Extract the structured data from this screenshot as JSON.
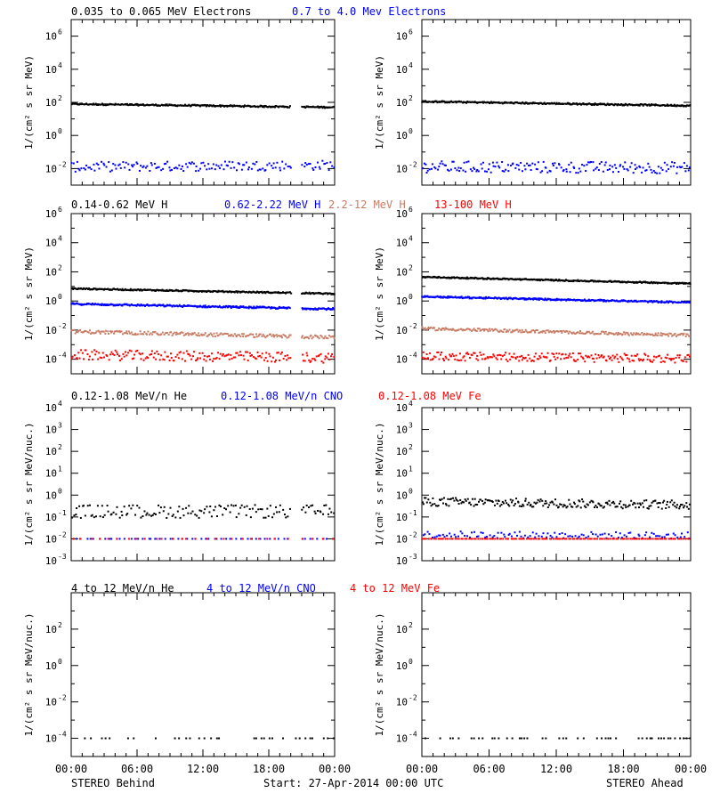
{
  "footer": {
    "left": "STEREO Behind",
    "center": "Start: 27-Apr-2014 00:00 UTC",
    "right": "STEREO Ahead"
  },
  "x_ticks": [
    "00:00",
    "06:00",
    "12:00",
    "18:00",
    "00:00"
  ],
  "colors": {
    "black": "#000000",
    "blue": "#0000ff",
    "tan": "#c87c64",
    "red": "#ff0000"
  },
  "chart_data": [
    {
      "type": "scatter",
      "row": "electrons",
      "labels": [
        {
          "text": "0.035 to 0.065 MeV Electrons",
          "color": "#000000"
        },
        {
          "text": "0.7 to 4.0 Mev Electrons",
          "color": "#0000ff"
        }
      ],
      "ylabel": "1/(cm² s sr MeV)",
      "yscale": "log",
      "ylim_exp": [
        -3,
        7
      ],
      "yticks_exp": [
        -2,
        0,
        2,
        4,
        6
      ],
      "panels": [
        {
          "side": "behind",
          "gap": [
            0.835,
            0.875
          ],
          "series": [
            {
              "color": "#000000",
              "start_exp": 1.9,
              "end_exp": 1.7,
              "scatter": 0.05,
              "density": 240
            },
            {
              "color": "#0000ff",
              "start_exp": -1.9,
              "end_exp": -1.8,
              "scatter": 0.3,
              "density": 160
            }
          ]
        },
        {
          "side": "ahead",
          "gap": null,
          "series": [
            {
              "color": "#000000",
              "start_exp": 2.05,
              "end_exp": 1.8,
              "scatter": 0.05,
              "density": 260
            },
            {
              "color": "#0000ff",
              "start_exp": -1.9,
              "end_exp": -1.95,
              "scatter": 0.35,
              "density": 180
            }
          ]
        }
      ]
    },
    {
      "type": "scatter",
      "row": "protons",
      "labels": [
        {
          "text": "0.14-0.62 MeV H",
          "color": "#000000"
        },
        {
          "text": "0.62-2.22 MeV H",
          "color": "#0000ff"
        },
        {
          "text": "2.2-12 MeV H",
          "color": "#c87c64"
        },
        {
          "text": "13-100 MeV H",
          "color": "#ff0000"
        }
      ],
      "ylabel": "1/(cm² s sr MeV)",
      "yscale": "log",
      "ylim_exp": [
        -5,
        6
      ],
      "yticks_exp": [
        -4,
        -2,
        0,
        2,
        4,
        6
      ],
      "panels": [
        {
          "side": "behind",
          "gap": [
            0.835,
            0.875
          ],
          "series": [
            {
              "color": "#000000",
              "start_exp": 0.85,
              "end_exp": 0.5,
              "scatter": 0.05,
              "density": 260
            },
            {
              "color": "#0000ff",
              "start_exp": -0.2,
              "end_exp": -0.55,
              "scatter": 0.07,
              "density": 240
            },
            {
              "color": "#c87c64",
              "start_exp": -2.1,
              "end_exp": -2.5,
              "scatter": 0.12,
              "density": 220
            },
            {
              "color": "#ff0000",
              "start_exp": -3.7,
              "end_exp": -3.9,
              "scatter": 0.35,
              "density": 200
            }
          ]
        },
        {
          "side": "ahead",
          "gap": null,
          "series": [
            {
              "color": "#000000",
              "start_exp": 1.65,
              "end_exp": 1.2,
              "scatter": 0.05,
              "density": 280
            },
            {
              "color": "#0000ff",
              "start_exp": 0.3,
              "end_exp": -0.1,
              "scatter": 0.06,
              "density": 260
            },
            {
              "color": "#c87c64",
              "start_exp": -1.9,
              "end_exp": -2.35,
              "scatter": 0.1,
              "density": 240
            },
            {
              "color": "#ff0000",
              "start_exp": -3.8,
              "end_exp": -3.95,
              "scatter": 0.3,
              "density": 220
            }
          ]
        }
      ]
    },
    {
      "type": "scatter",
      "row": "heavy-low",
      "labels": [
        {
          "text": "0.12-1.08 MeV/n He",
          "color": "#000000"
        },
        {
          "text": "0.12-1.08 MeV/n CNO",
          "color": "#0000ff"
        },
        {
          "text": "0.12-1.08 MeV Fe",
          "color": "#ff0000"
        }
      ],
      "ylabel": "1/(cm² s sr MeV/nuc.)",
      "yscale": "log",
      "ylim_exp": [
        -3,
        4
      ],
      "yticks_exp": [
        -3,
        -2,
        -1,
        0,
        1,
        2,
        3,
        4
      ],
      "panels": [
        {
          "side": "behind",
          "gap": [
            0.835,
            0.875
          ],
          "series": [
            {
              "color": "#000000",
              "start_exp": -0.75,
              "end_exp": -0.75,
              "scatter": 0.3,
              "density": 150
            },
            {
              "color": "#0000ff",
              "start_exp": -2.0,
              "end_exp": -2.0,
              "scatter": 0.0,
              "density": 60
            },
            {
              "color": "#ff0000",
              "start_exp": -2.0,
              "end_exp": -2.0,
              "scatter": 0.0,
              "density": 30
            }
          ]
        },
        {
          "side": "ahead",
          "gap": null,
          "series": [
            {
              "color": "#000000",
              "start_exp": -0.3,
              "end_exp": -0.45,
              "scatter": 0.2,
              "density": 220
            },
            {
              "color": "#0000ff",
              "start_exp": -1.8,
              "end_exp": -1.85,
              "scatter": 0.15,
              "density": 120
            },
            {
              "color": "#ff0000",
              "start_exp": -2.0,
              "end_exp": -2.0,
              "scatter": 0.0,
              "density": 140
            }
          ]
        }
      ]
    },
    {
      "type": "scatter",
      "row": "heavy-high",
      "labels": [
        {
          "text": "4 to 12 MeV/n He",
          "color": "#000000"
        },
        {
          "text": "4 to 12 MeV/n CNO",
          "color": "#0000ff"
        },
        {
          "text": "4 to 12 MeV Fe",
          "color": "#ff0000"
        }
      ],
      "ylabel": "1/(cm² s sr MeV/nuc.)",
      "yscale": "log",
      "ylim_exp": [
        -5,
        4
      ],
      "yticks_exp": [
        -4,
        -2,
        0,
        2
      ],
      "panels": [
        {
          "side": "behind",
          "gap": null,
          "series": [
            {
              "color": "#000000",
              "start_exp": -4.0,
              "end_exp": -4.0,
              "scatter": 0.0,
              "density": 70,
              "sparse": true
            }
          ]
        },
        {
          "side": "ahead",
          "gap": null,
          "series": [
            {
              "color": "#000000",
              "start_exp": -4.0,
              "end_exp": -4.0,
              "scatter": 0.0,
              "density": 90,
              "sparse": true
            }
          ]
        }
      ]
    }
  ]
}
